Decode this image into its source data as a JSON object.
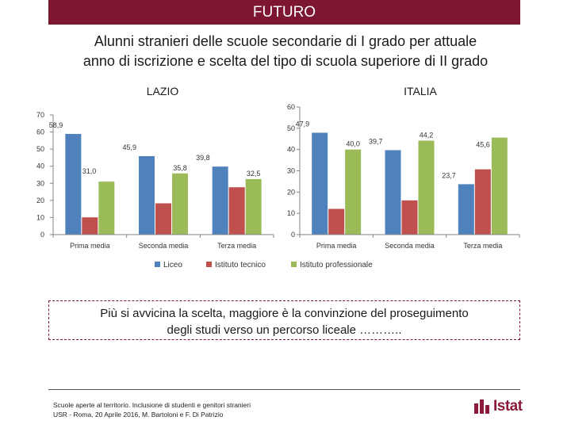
{
  "header": {
    "banner": "FUTURO"
  },
  "title": {
    "line1": "Alunni stranieri delle scuole secondarie di I grado per attuale",
    "line2": "anno di iscrizione e scelta del tipo di scuola superiore di II grado"
  },
  "legend": [
    "Liceo",
    "Istituto tecnico",
    "Istituto professionale"
  ],
  "colors": {
    "liceo": "#4f81bd",
    "tecnico": "#c0504d",
    "professionale": "#9bbb59",
    "accent": "#7d1631"
  },
  "chart_data": [
    {
      "type": "bar",
      "title": "LAZIO",
      "categories": [
        "Prima media",
        "Seconda media",
        "Terza media"
      ],
      "ylim": [
        0,
        70
      ],
      "yticks": [
        0,
        10,
        20,
        30,
        40,
        50,
        60,
        70
      ],
      "series": [
        {
          "name": "Liceo",
          "values": [
            58.9,
            45.9,
            39.8
          ],
          "labels": [
            "58,9",
            "45,9",
            "39,8"
          ]
        },
        {
          "name": "Istituto tecnico",
          "values": [
            10.1,
            18.3,
            27.7
          ],
          "labels": [
            "",
            "",
            ""
          ]
        },
        {
          "name": "Istituto professionale",
          "values": [
            31.0,
            35.8,
            32.5
          ],
          "labels": [
            "31,0",
            "35,8",
            "32,5"
          ]
        }
      ]
    },
    {
      "type": "bar",
      "title": "ITALIA",
      "categories": [
        "Prima media",
        "Seconda media",
        "Terza media"
      ],
      "ylim": [
        0,
        60
      ],
      "yticks": [
        0,
        10,
        20,
        30,
        40,
        50,
        60
      ],
      "series": [
        {
          "name": "Liceo",
          "values": [
            47.9,
            39.7,
            23.7
          ],
          "labels": [
            "47,9",
            "39,7",
            "23,7"
          ]
        },
        {
          "name": "Istituto tecnico",
          "values": [
            12.1,
            16.1,
            30.7
          ],
          "labels": [
            "",
            "",
            ""
          ]
        },
        {
          "name": "Istituto professionale",
          "values": [
            40.0,
            44.2,
            45.6
          ],
          "labels": [
            "40,0",
            "44,2",
            "45,6"
          ]
        }
      ]
    }
  ],
  "callout": {
    "line1": "Più si avvicina la scelta, maggiore è la convinzione del proseguimento",
    "line2": "degli studi verso un percorso liceale ……….."
  },
  "footer": {
    "line1": "Scuole aperte al territorio. Inclusione di studenti e genitori stranieri",
    "line2": "USR - Roma, 20 Aprile 2016, M. Bartoloni e F. Di Patrizio"
  },
  "logo": {
    "text": "Istat"
  }
}
